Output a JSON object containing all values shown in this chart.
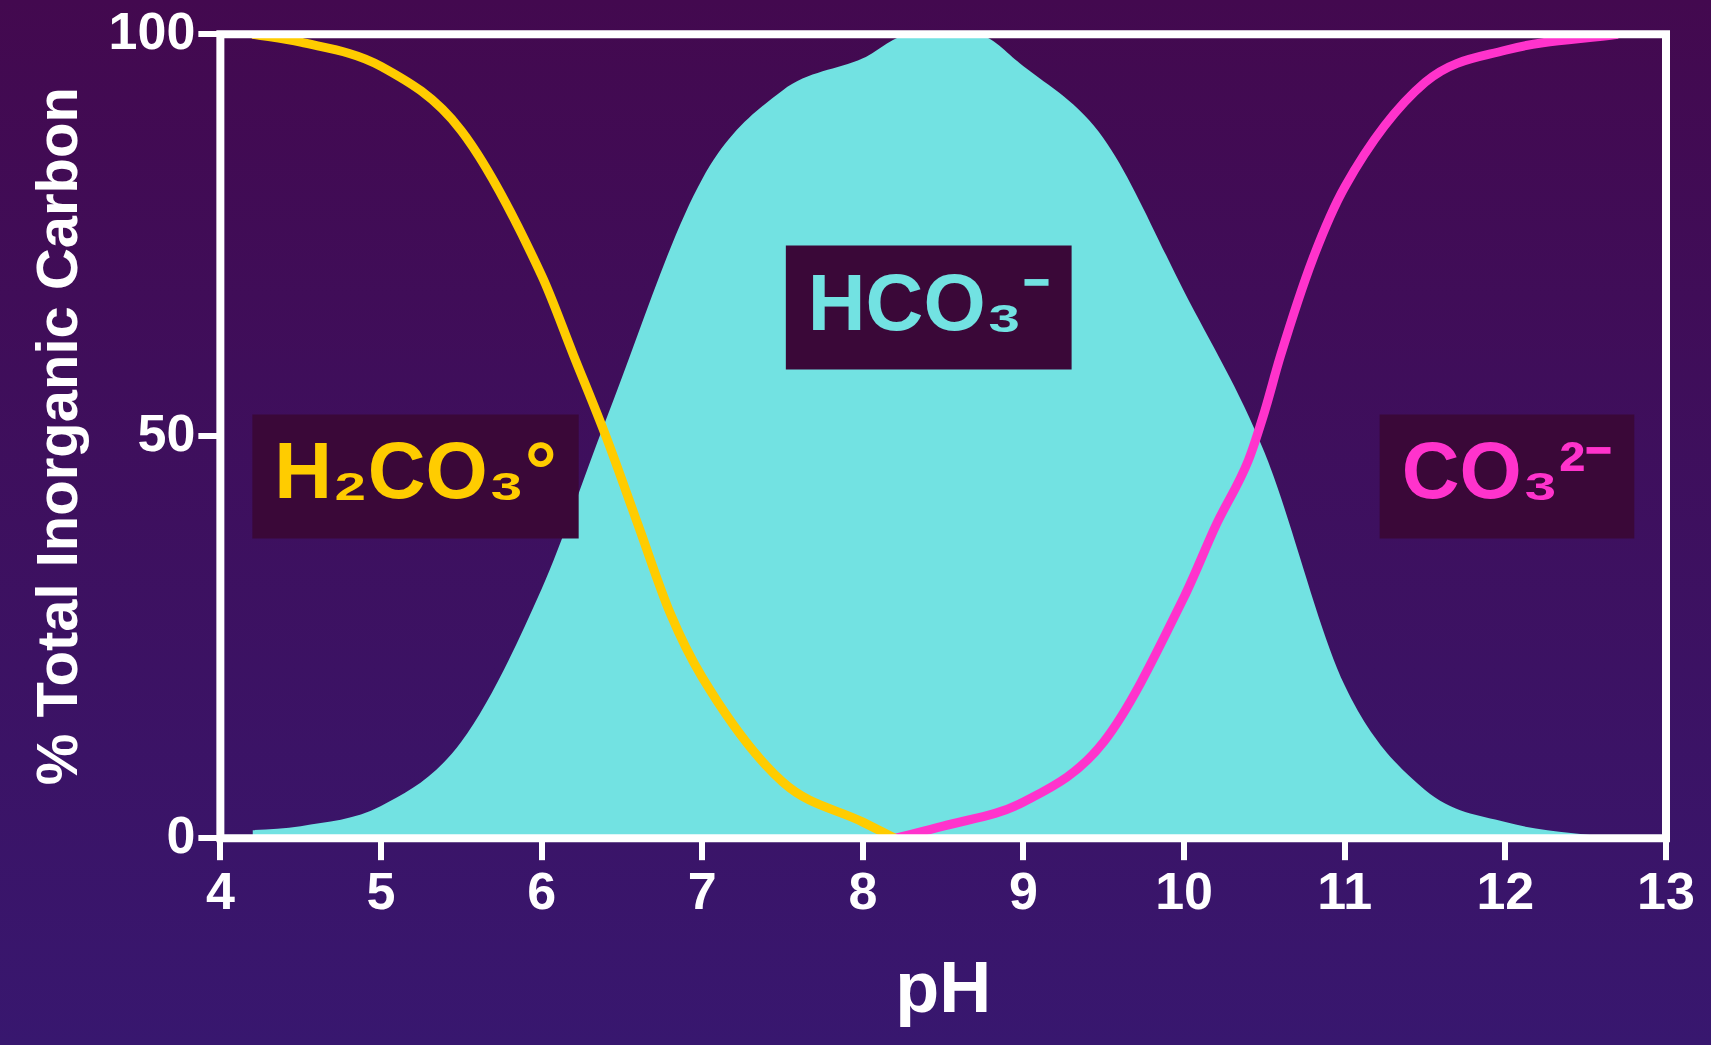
{
  "chart_data": {
    "type": "line",
    "xlabel": "pH",
    "ylabel": "% Total Inorganic Carbon",
    "xlim": [
      4,
      13
    ],
    "ylim": [
      0,
      100
    ],
    "xticks": [
      4,
      5,
      6,
      7,
      8,
      9,
      10,
      11,
      12,
      13
    ],
    "yticks": [
      0,
      50,
      100
    ],
    "grid": false,
    "legend": false,
    "marker": "none",
    "line_style": "solid",
    "series": [
      {
        "name": "HCO₃⁻",
        "type": "area",
        "color": "#72e2e2",
        "x": [
          4.2,
          4.5,
          5,
          5.5,
          6,
          6.4,
          7,
          7.5,
          8,
          8.3,
          8.7,
          9,
          9.5,
          10,
          10.5,
          11,
          11.5,
          12,
          12.7
        ],
        "values": [
          1,
          1.5,
          4,
          12,
          31,
          52,
          82,
          93,
          97,
          100,
          100,
          96,
          87,
          68,
          48,
          19,
          6,
          2,
          0
        ]
      },
      {
        "name": "H₂CO₃°",
        "color": "#ffcc00",
        "x": [
          4.2,
          4.5,
          5,
          5.5,
          6,
          6.2,
          6.4,
          6.6,
          6.8,
          7,
          7.5,
          8,
          8.2
        ],
        "values": [
          100,
          99,
          96,
          88,
          70,
          60,
          50,
          39,
          28,
          20,
          7,
          2,
          0
        ]
      },
      {
        "name": "CO₃²⁻",
        "color": "#ff33cc",
        "x": [
          8.2,
          8.5,
          9,
          9.5,
          10,
          10.2,
          10.4,
          10.5,
          10.6,
          10.8,
          11,
          11.5,
          12,
          12.7
        ],
        "values": [
          0,
          1.5,
          4.5,
          12,
          30,
          39,
          47,
          53,
          60,
          72,
          81,
          94,
          98,
          100
        ]
      }
    ]
  }
}
